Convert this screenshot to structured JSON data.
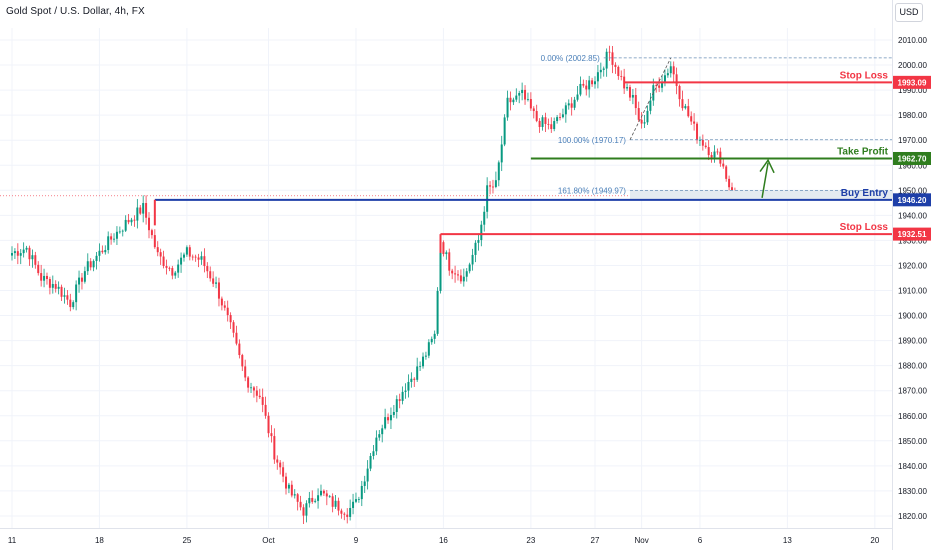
{
  "header": {
    "title": "Gold Spot / U.S. Dollar, 4h, FX",
    "currency": "USD"
  },
  "chart_data": {
    "type": "candlestick",
    "x_labels": [
      {
        "label": "11",
        "i": 0
      },
      {
        "label": "18",
        "i": 30
      },
      {
        "label": "25",
        "i": 60
      },
      {
        "label": "Oct",
        "i": 88
      },
      {
        "label": "9",
        "i": 118
      },
      {
        "label": "16",
        "i": 148
      },
      {
        "label": "23",
        "i": 178
      },
      {
        "label": "27",
        "i": 200
      },
      {
        "label": "Nov",
        "i": 216
      },
      {
        "label": "6",
        "i": 236
      },
      {
        "label": "13",
        "i": 266
      },
      {
        "label": "20",
        "i": 296
      }
    ],
    "ylim": [
      1815,
      2015
    ],
    "y_ticks": [
      1820,
      1830,
      1840,
      1850,
      1860,
      1870,
      1880,
      1890,
      1900,
      1910,
      1920,
      1930,
      1940,
      1950,
      1960,
      1970,
      1980,
      1990,
      2000,
      2010
    ],
    "anchors": [
      [
        0,
        1925
      ],
      [
        5,
        1927
      ],
      [
        10,
        1915
      ],
      [
        15,
        1912
      ],
      [
        20,
        1905
      ],
      [
        25,
        1918
      ],
      [
        30,
        1925
      ],
      [
        35,
        1932
      ],
      [
        40,
        1938
      ],
      [
        45,
        1943
      ],
      [
        50,
        1924
      ],
      [
        55,
        1918
      ],
      [
        60,
        1925
      ],
      [
        65,
        1922
      ],
      [
        70,
        1912
      ],
      [
        75,
        1895
      ],
      [
        80,
        1875
      ],
      [
        85,
        1868
      ],
      [
        90,
        1845
      ],
      [
        95,
        1830
      ],
      [
        100,
        1822
      ],
      [
        105,
        1830
      ],
      [
        110,
        1825
      ],
      [
        115,
        1822
      ],
      [
        118,
        1825
      ],
      [
        120,
        1832
      ],
      [
        125,
        1852
      ],
      [
        130,
        1862
      ],
      [
        135,
        1872
      ],
      [
        140,
        1880
      ],
      [
        145,
        1892
      ],
      [
        147,
        1930
      ],
      [
        150,
        1920
      ],
      [
        155,
        1915
      ],
      [
        160,
        1930
      ],
      [
        163,
        1950
      ],
      [
        166,
        1952
      ],
      [
        170,
        1985
      ],
      [
        175,
        1988
      ],
      [
        180,
        1978
      ],
      [
        185,
        1975
      ],
      [
        190,
        1982
      ],
      [
        195,
        1990
      ],
      [
        200,
        1995
      ],
      [
        205,
        2005
      ],
      [
        210,
        1992
      ],
      [
        213,
        1986
      ],
      [
        216,
        1975
      ],
      [
        220,
        1990
      ],
      [
        224,
        1996
      ],
      [
        226,
        2000
      ],
      [
        230,
        1985
      ],
      [
        235,
        1972
      ],
      [
        240,
        1965
      ],
      [
        243,
        1963
      ],
      [
        246,
        1952
      ],
      [
        248,
        1949
      ]
    ],
    "levels": [
      {
        "name": "stop-loss-upper",
        "value": 1993.09,
        "label": "Stop Loss",
        "price": "1993.09",
        "color": "#f23645",
        "start_i": 210
      },
      {
        "name": "take-profit",
        "value": 1962.7,
        "label": "Take Profit",
        "price": "1962.70",
        "color": "#2f7d1e",
        "start_i": 178
      },
      {
        "name": "buy-entry",
        "value": 1946.2,
        "label": "Buy Entry",
        "price": "1946.20",
        "color": "#1e3fa8",
        "start_i": 49
      },
      {
        "name": "stop-loss-lower",
        "value": 1932.51,
        "label": "Stop Loss",
        "price": "1932.51",
        "color": "#f23645",
        "start_i": 147
      }
    ],
    "fib": [
      {
        "label": "0.00% (2002.85)",
        "value": 2002.85,
        "start_i": 203
      },
      {
        "label": "100.00% (1970.17)",
        "value": 1970.17,
        "start_i": 212
      },
      {
        "label": "161.80% (1949.97)",
        "value": 1949.97,
        "start_i": 212
      }
    ],
    "current_price": 1947.8,
    "colors": {
      "up": "#089981",
      "down": "#f23645",
      "grid": "#f0f3fa",
      "axis_text": "#131722"
    }
  }
}
